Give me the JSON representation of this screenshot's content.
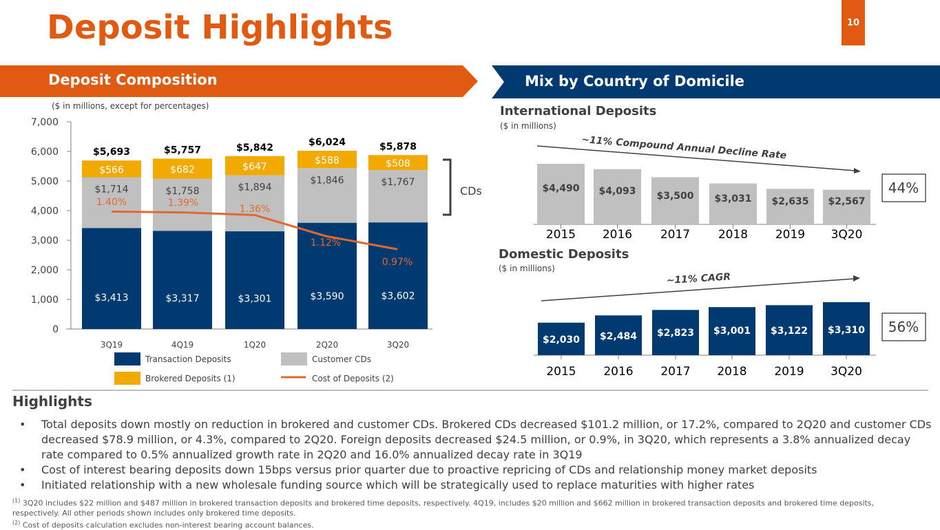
{
  "page": {
    "title": "Deposit Highlights",
    "page_number": "10",
    "colors": {
      "accent_orange": "#E05A12",
      "navy": "#003A70",
      "gray": "#C0C0C0",
      "gold": "#F2A900",
      "line": "#E06A2E"
    }
  },
  "left_section": {
    "banner": "Deposit Composition",
    "units_note": "($ in millions, except for percentages)",
    "cds_label": "CDs"
  },
  "right_section": {
    "banner": "Mix by Country of Domicile",
    "international": {
      "title": "International Deposits",
      "units": "($ in millions)",
      "trend_label": "~11% Compound Annual Decline Rate",
      "share": "44%"
    },
    "domestic": {
      "title": "Domestic Deposits",
      "units": "($ in millions)",
      "trend_label": "~11% CAGR",
      "share": "56%"
    }
  },
  "chart_data": [
    {
      "type": "bar",
      "stacked": true,
      "title": "Deposit Composition",
      "categories": [
        "3Q19",
        "4Q19",
        "1Q20",
        "2Q20",
        "3Q20"
      ],
      "ylim": [
        0,
        7000
      ],
      "yticks": [
        "0",
        "1,000",
        "2,000",
        "3,000",
        "4,000",
        "5,000",
        "6,000",
        "7,000"
      ],
      "series": [
        {
          "name": "Transaction Deposits",
          "values": [
            3413,
            3317,
            3301,
            3590,
            3602
          ],
          "labels": [
            "$3,413",
            "$3,317",
            "$3,301",
            "$3,590",
            "$3,602"
          ]
        },
        {
          "name": "Customer CDs",
          "values": [
            1714,
            1758,
            1894,
            1846,
            1767
          ],
          "labels": [
            "$1,714",
            "$1,758",
            "$1,894",
            "$1,846",
            "$1,767"
          ]
        },
        {
          "name": "Brokered Deposits (1)",
          "values": [
            566,
            682,
            647,
            588,
            508
          ],
          "labels": [
            "$566",
            "$682",
            "$647",
            "$588",
            "$508"
          ]
        }
      ],
      "totals": [
        "$5,693",
        "$5,757",
        "$5,842",
        "$6,024",
        "$5,878"
      ],
      "line_series": {
        "name": "Cost of Deposits (2)",
        "values_pct": [
          1.4,
          1.39,
          1.36,
          1.12,
          0.97
        ],
        "labels": [
          "1.40%",
          "1.39%",
          "1.36%",
          "1.12%",
          "0.97%"
        ]
      },
      "legend": [
        {
          "name": "Transaction Deposits",
          "kind": "box",
          "color": "#003A70"
        },
        {
          "name": "Customer CDs",
          "kind": "box",
          "color": "#C0C0C0"
        },
        {
          "name": "Brokered Deposits (1)",
          "kind": "box",
          "color": "#F2A900"
        },
        {
          "name": "Cost of Deposits (2)",
          "kind": "line",
          "color": "#E06A2E"
        }
      ],
      "legend_position": "bottom"
    },
    {
      "type": "bar",
      "title": "International Deposits",
      "categories": [
        "2015",
        "2016",
        "2017",
        "2018",
        "2019",
        "3Q20"
      ],
      "values": [
        4490,
        4093,
        3500,
        3031,
        2635,
        2567
      ],
      "labels": [
        "$4,490",
        "$4,093",
        "$3,500",
        "$3,031",
        "$2,635",
        "$2,567"
      ],
      "annotation": "~11% Compound Annual Decline Rate",
      "share_of_total": "44%"
    },
    {
      "type": "bar",
      "title": "Domestic Deposits",
      "categories": [
        "2015",
        "2016",
        "2017",
        "2018",
        "2019",
        "3Q20"
      ],
      "values": [
        2030,
        2484,
        2823,
        3001,
        3122,
        3310
      ],
      "labels": [
        "$2,030",
        "$2,484",
        "$2,823",
        "$3,001",
        "$3,122",
        "$3,310"
      ],
      "annotation": "~11% CAGR",
      "share_of_total": "56%"
    }
  ],
  "highlights": {
    "title": "Highlights",
    "bullets": [
      "Total deposits down mostly on reduction in brokered and customer CDs. Brokered CDs decreased $101.2 million, or 17.2%, compared to 2Q20 and customer CDs decreased $78.9 million, or 4.3%, compared to 2Q20. Foreign deposits decreased $24.5 million, or 0.9%, in 3Q20, which represents a 3.8% annualized decay rate compared to 0.5%  annualized growth rate in 2Q20 and 16.0% annualized decay rate in 3Q19",
      "Cost of interest bearing deposits down 15bps versus prior quarter due to proactive repricing of CDs and relationship money market deposits",
      "Initiated relationship with a new wholesale funding source which will be strategically used to replace maturities with higher rates"
    ],
    "bullet_glyph": "•"
  },
  "footnotes": [
    {
      "marker": "(1)",
      "text": " 3Q20 includes $22 million and $487 million in brokered transaction deposits and brokered time deposits, respectively. 4Q19, includes $20 million and $662 million in brokered transaction deposits and brokered time deposits, respectively. All other periods shown includes only brokered time deposits."
    },
    {
      "marker": "(2)",
      "text": " Cost of deposits calculation excludes non-interest bearing account balances."
    }
  ]
}
